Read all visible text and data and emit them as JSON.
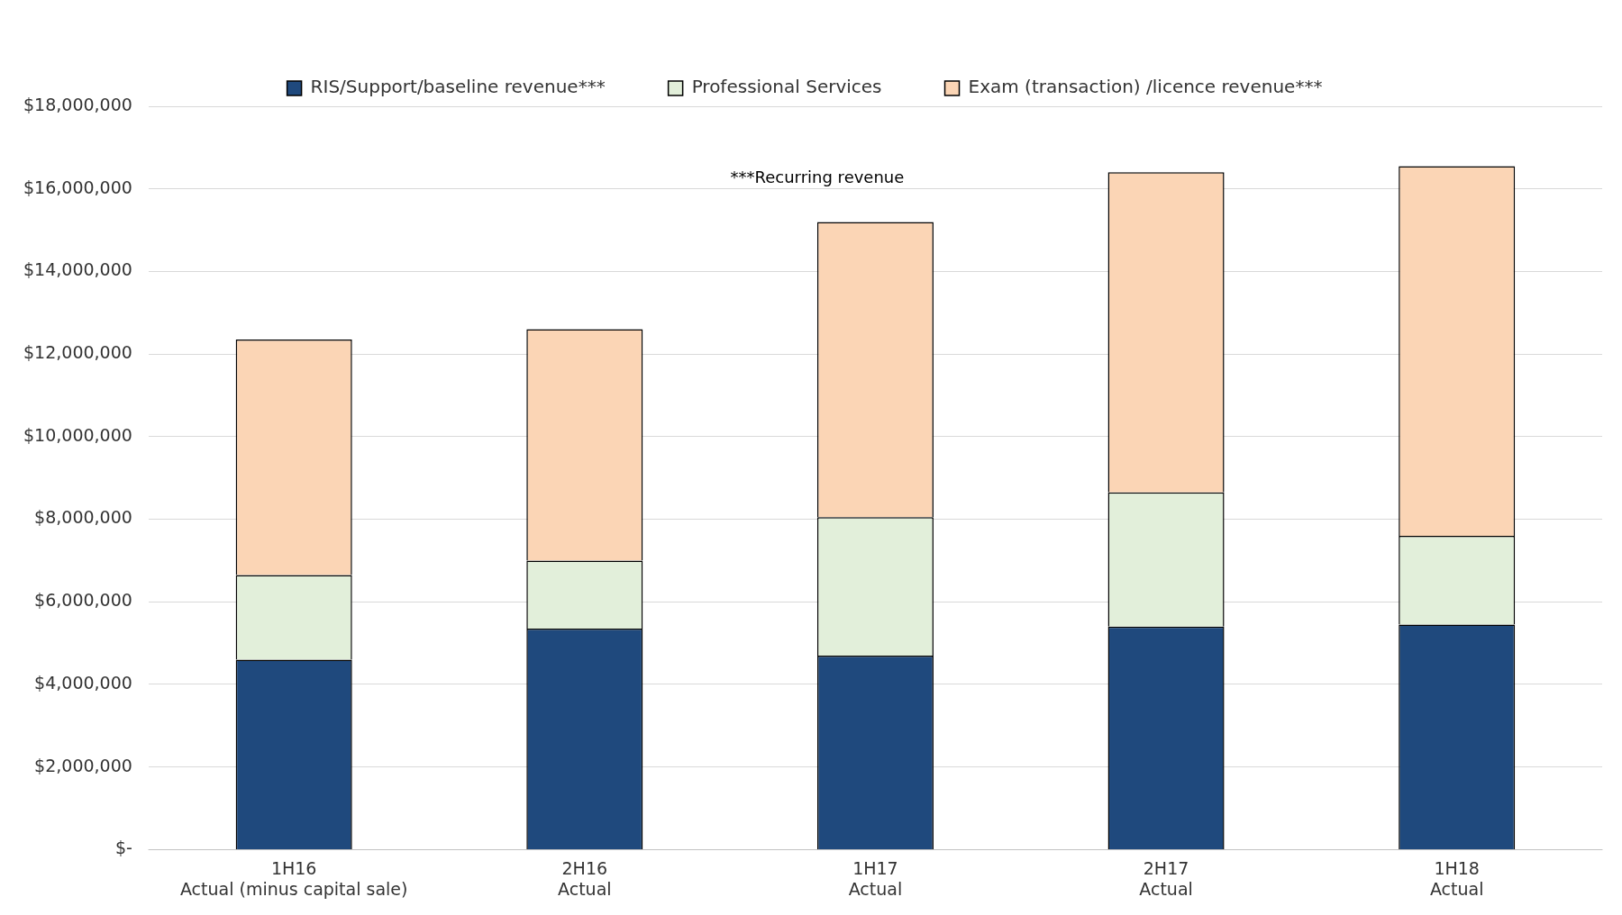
{
  "chart_data": {
    "type": "bar",
    "stacked": true,
    "categories": [
      "1H16\nActual (minus capital sale)",
      "2H16\nActual",
      "1H17\nActual",
      "2H17\nActual",
      "1H18\nActual"
    ],
    "series": [
      {
        "name": "RIS/Support/baseline revenue***",
        "color": "#1f497d",
        "values": [
          4600000,
          5350000,
          4700000,
          5400000,
          5450000
        ]
      },
      {
        "name": "Professional Services",
        "color": "#e2efda",
        "values": [
          2050000,
          1650000,
          3350000,
          3250000,
          2150000
        ]
      },
      {
        "name": "Exam (transaction) /licence revenue***",
        "color": "#fbd5b5",
        "values": [
          5700000,
          5600000,
          7150000,
          7750000,
          8950000
        ]
      }
    ],
    "ylim": [
      0,
      18000000
    ],
    "yticks": [
      {
        "value": 0,
        "label": "$-"
      },
      {
        "value": 2000000,
        "label": "$2,000,000"
      },
      {
        "value": 4000000,
        "label": "$4,000,000"
      },
      {
        "value": 6000000,
        "label": "$6,000,000"
      },
      {
        "value": 8000000,
        "label": "$8,000,000"
      },
      {
        "value": 10000000,
        "label": "$10,000,000"
      },
      {
        "value": 12000000,
        "label": "$12,000,000"
      },
      {
        "value": 14000000,
        "label": "$14,000,000"
      },
      {
        "value": 16000000,
        "label": "$16,000,000"
      },
      {
        "value": 18000000,
        "label": "$18,000,000"
      }
    ],
    "grid": "y",
    "legend": "top",
    "annotations": [
      "***Recurring revenue"
    ]
  }
}
